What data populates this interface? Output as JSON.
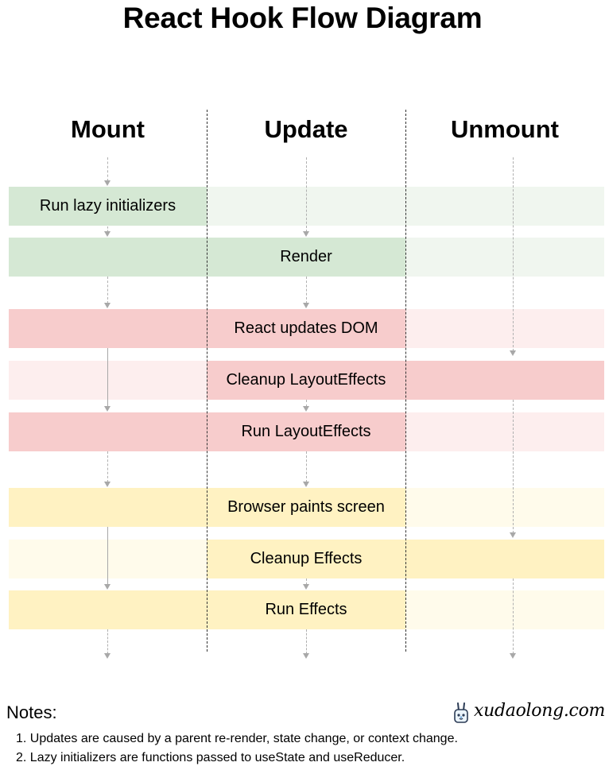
{
  "title": "React Hook Flow Diagram",
  "columns": [
    {
      "label": "Mount"
    },
    {
      "label": "Update"
    },
    {
      "label": "Unmount"
    }
  ],
  "steps": [
    {
      "label": "Run lazy initializers",
      "group": "green",
      "active": [
        true,
        false,
        false
      ],
      "label_span": [
        0,
        0
      ]
    },
    {
      "label": "Render",
      "group": "green",
      "active": [
        true,
        true,
        false
      ],
      "label_span": [
        0,
        1
      ]
    },
    {
      "label": "React updates DOM",
      "group": "red",
      "active": [
        true,
        true,
        false
      ],
      "label_span": [
        0,
        1
      ]
    },
    {
      "label": "Cleanup LayoutEffects",
      "group": "red",
      "active": [
        false,
        true,
        true
      ],
      "label_span": [
        1,
        1
      ]
    },
    {
      "label": "Run LayoutEffects",
      "group": "red",
      "active": [
        true,
        true,
        false
      ],
      "label_span": [
        0,
        1
      ]
    },
    {
      "label": "Browser paints screen",
      "group": "yellow",
      "active": [
        true,
        true,
        false
      ],
      "label_span": [
        0,
        1
      ]
    },
    {
      "label": "Cleanup Effects",
      "group": "yellow",
      "active": [
        false,
        true,
        true
      ],
      "label_span": [
        1,
        1
      ]
    },
    {
      "label": "Run Effects",
      "group": "yellow",
      "active": [
        true,
        true,
        false
      ],
      "label_span": [
        0,
        1
      ]
    }
  ],
  "colors": {
    "green": {
      "strong": "#d5e8d4",
      "light": "#f0f6ef"
    },
    "red": {
      "strong": "#f7cccc",
      "light": "#fdeeee"
    },
    "yellow": {
      "strong": "#fff2c2",
      "light": "#fffbeb"
    }
  },
  "notes": {
    "title": "Notes:",
    "items": [
      "1. Updates are caused by a parent re-render, state change, or context change.",
      "2. Lazy initializers are functions passed to useState and useReducer."
    ]
  },
  "branding": {
    "logo_text": "xudaolong.com",
    "logo_icon": "rabbit-icon"
  }
}
